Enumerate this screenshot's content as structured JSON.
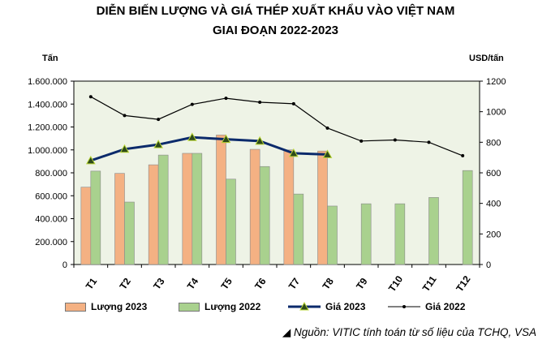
{
  "chart_data": {
    "type": "bar",
    "title": "DIỄN BIẾN LƯỢNG VÀ GIÁ THÉP XUẤT KHẨU VÀO VIỆT NAM",
    "subtitle": "GIAI ĐOẠN 2022-2023",
    "ylabel_left": "Tấn",
    "ylabel_right": "USD/tấn",
    "categories": [
      "T1",
      "T2",
      "T3",
      "T4",
      "T5",
      "T6",
      "T7",
      "T8",
      "T9",
      "T10",
      "T11",
      "T12"
    ],
    "ylim_left": [
      0,
      1600000
    ],
    "ylim_right": [
      0,
      1200
    ],
    "yticks_left": [
      "0",
      "200.000",
      "400.000",
      "600.000",
      "800.000",
      "1.000.000",
      "1.200.000",
      "1.400.000",
      "1.600.000"
    ],
    "yticks_right": [
      "0",
      "200",
      "400",
      "600",
      "800",
      "1000",
      "1200"
    ],
    "series": [
      {
        "name": "Lượng 2023",
        "kind": "bar",
        "axis": "left",
        "color": "#f4b183",
        "values": [
          675000,
          795000,
          870000,
          970000,
          1130000,
          1005000,
          1000000,
          990000,
          null,
          null,
          null,
          null
        ]
      },
      {
        "name": "Lượng 2022",
        "kind": "bar",
        "axis": "left",
        "color": "#a9d18e",
        "values": [
          815000,
          545000,
          955000,
          970000,
          745000,
          855000,
          615000,
          510000,
          530000,
          530000,
          585000,
          820000
        ]
      },
      {
        "name": "Giá 2023",
        "kind": "line",
        "axis": "right",
        "color": "#0b2a6b",
        "values": [
          680,
          755,
          785,
          832,
          820,
          808,
          728,
          720,
          null,
          null,
          null,
          null
        ]
      },
      {
        "name": "Giá 2022",
        "kind": "line",
        "axis": "right",
        "color": "#000000",
        "values": [
          1098,
          975,
          950,
          1048,
          1088,
          1062,
          1052,
          893,
          808,
          815,
          800,
          712
        ]
      }
    ],
    "grid": false,
    "legend_position": "bottom"
  },
  "source_text": "Nguồn: VITIC tính toán từ số liệu của TCHQ, VSA"
}
